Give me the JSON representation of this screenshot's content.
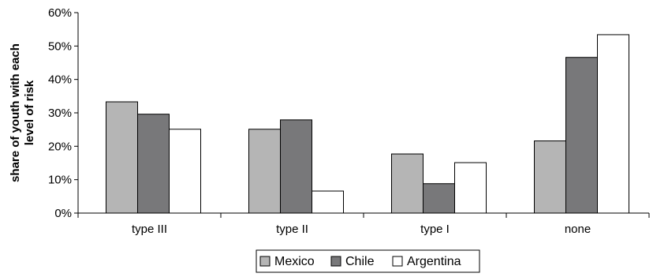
{
  "chart_data": {
    "type": "bar",
    "title": "",
    "xlabel": "",
    "ylabel": "share of youth with each level of risk",
    "ylabel_lines": [
      "share of youth with each",
      "level of risk"
    ],
    "ylim": [
      0,
      60
    ],
    "yticks": [
      0,
      10,
      20,
      30,
      40,
      50,
      60
    ],
    "ytick_labels": [
      "0%",
      "10%",
      "20%",
      "30%",
      "40%",
      "50%",
      "60%"
    ],
    "categories": [
      "type III",
      "type II",
      "type I",
      "none"
    ],
    "series": [
      {
        "name": "Mexico",
        "color": "#b5b5b5",
        "values": [
          33.3,
          25.1,
          17.7,
          21.6
        ]
      },
      {
        "name": "Chile",
        "color": "#78787a",
        "values": [
          29.6,
          27.9,
          8.8,
          46.6
        ]
      },
      {
        "name": "Argentina",
        "color": "#ffffff",
        "values": [
          25.1,
          6.6,
          15.1,
          53.4
        ]
      }
    ],
    "grid": false,
    "legend": "bottom-center"
  }
}
